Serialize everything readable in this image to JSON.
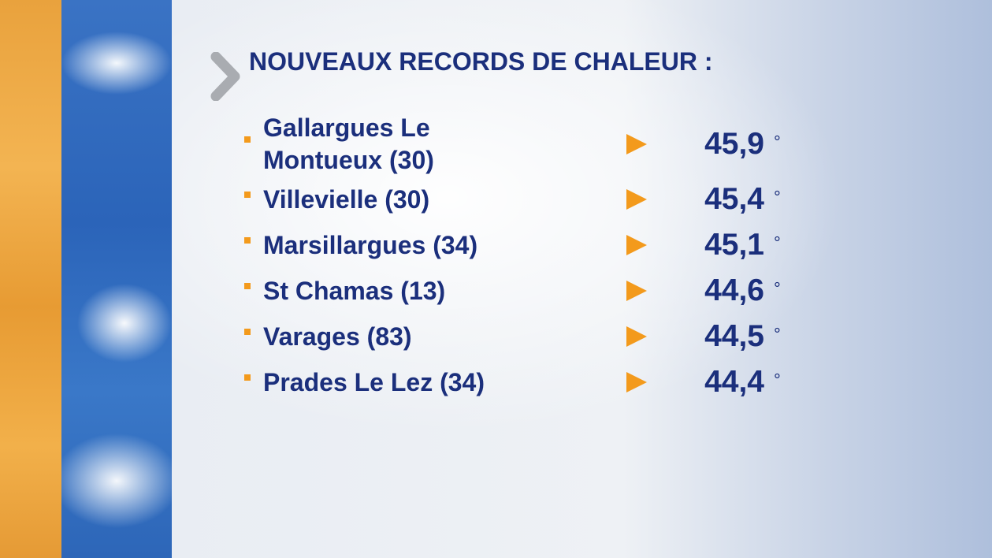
{
  "title": "NOUVEAUX RECORDS DE CHALEUR :",
  "unit": "°",
  "rows": [
    {
      "place": "Gallargues Le Montueux (30)",
      "value": "45,9"
    },
    {
      "place": "Villevielle (30)",
      "value": "45,4"
    },
    {
      "place": "Marsillargues (34)",
      "value": "45,1"
    },
    {
      "place": "St Chamas (13)",
      "value": "44,6"
    },
    {
      "place": "Varages (83)",
      "value": "44,5"
    },
    {
      "place": "Prades Le Lez (34)",
      "value": "44,4"
    }
  ]
}
